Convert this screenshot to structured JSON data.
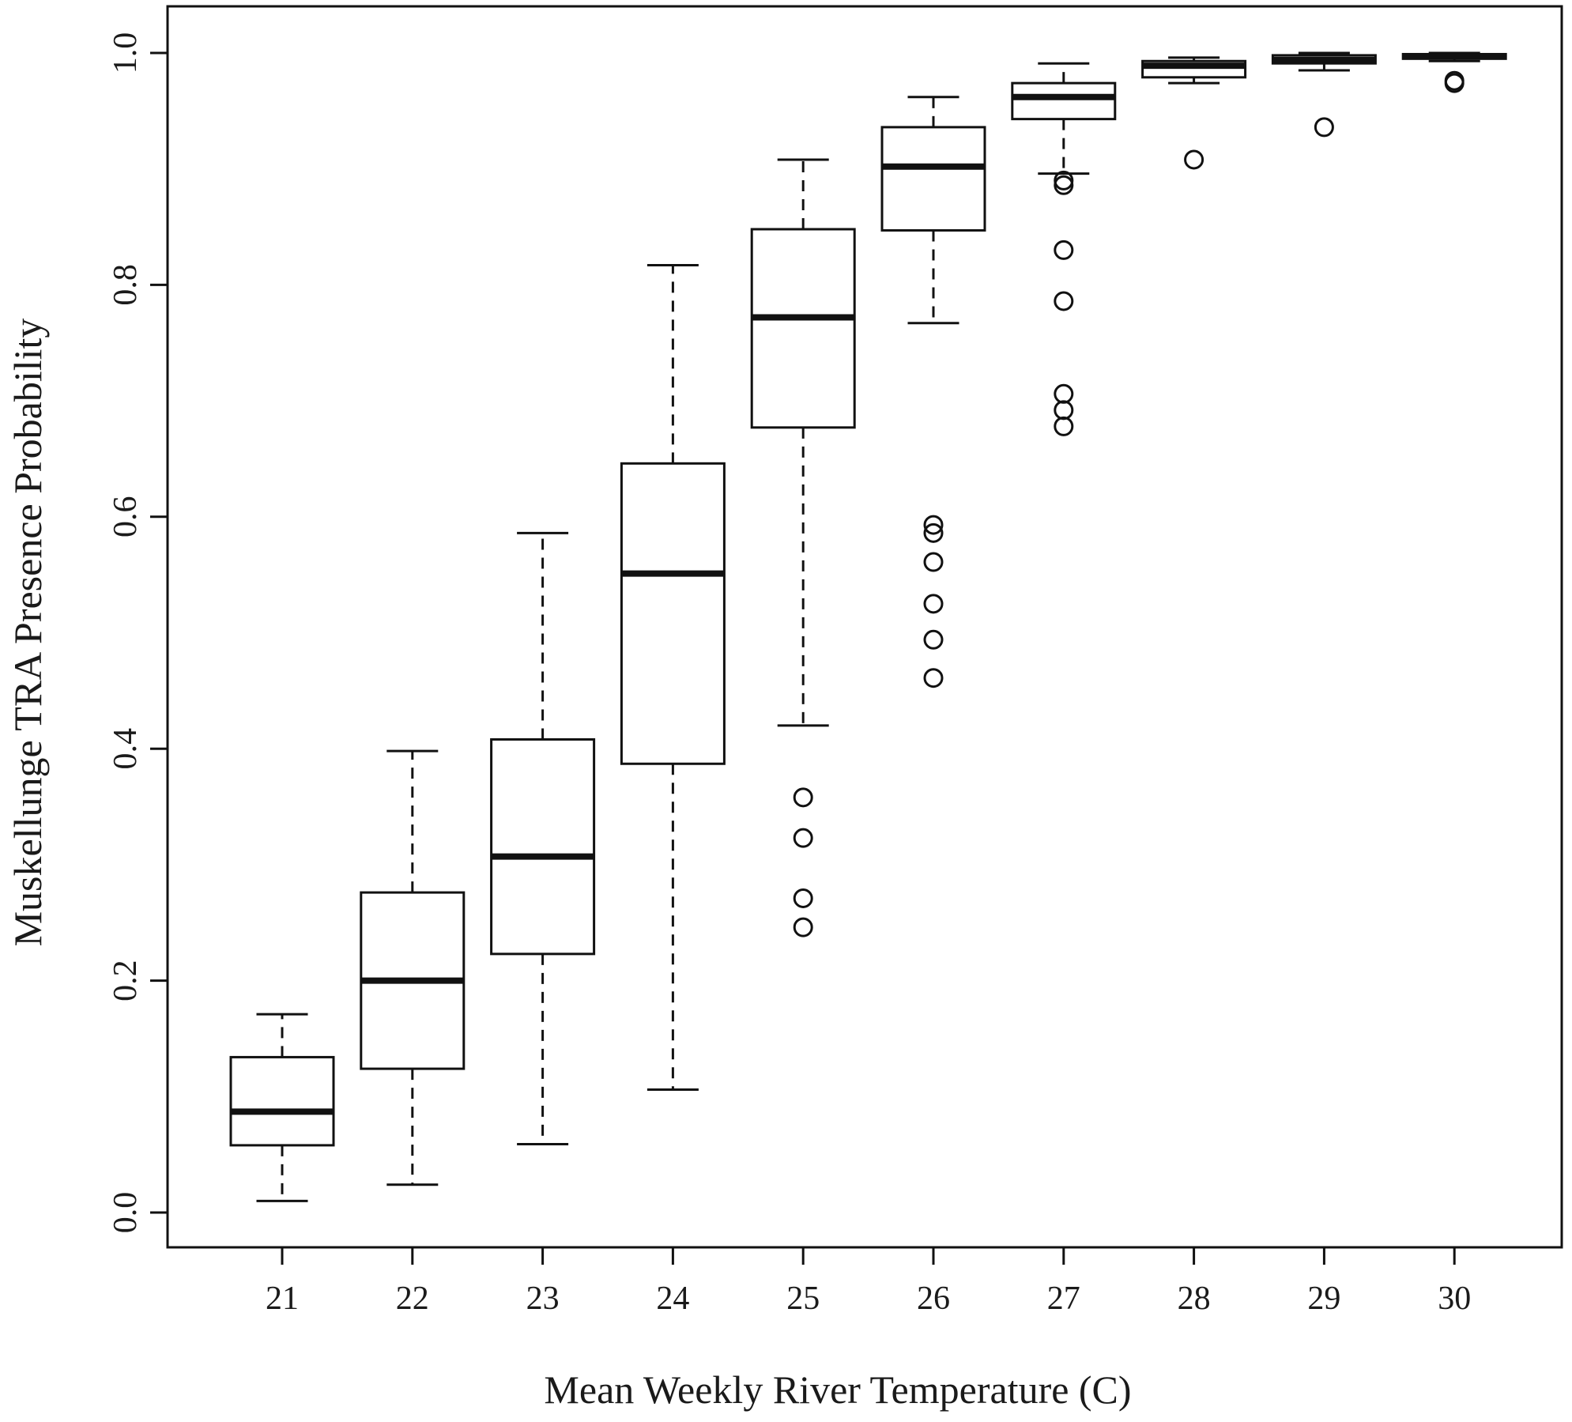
{
  "chart_data": {
    "type": "boxplot",
    "xlabel": "Mean Weekly River Temperature (C)",
    "ylabel": "Muskellunge TRA Presence Probability",
    "ylim": [
      0.0,
      1.0
    ],
    "yticks": [
      "0.0",
      "0.2",
      "0.4",
      "0.6",
      "0.8",
      "1.0"
    ],
    "categories": [
      "21",
      "22",
      "23",
      "24",
      "25",
      "26",
      "27",
      "28",
      "29",
      "30"
    ],
    "boxes": [
      {
        "category": "21",
        "whisker_low": 0.01,
        "q1": 0.058,
        "median": 0.087,
        "q3": 0.134,
        "whisker_high": 0.171,
        "outliers": []
      },
      {
        "category": "22",
        "whisker_low": 0.024,
        "q1": 0.124,
        "median": 0.2,
        "q3": 0.276,
        "whisker_high": 0.398,
        "outliers": []
      },
      {
        "category": "23",
        "whisker_low": 0.059,
        "q1": 0.223,
        "median": 0.307,
        "q3": 0.408,
        "whisker_high": 0.586,
        "outliers": []
      },
      {
        "category": "24",
        "whisker_low": 0.106,
        "q1": 0.387,
        "median": 0.551,
        "q3": 0.646,
        "whisker_high": 0.817,
        "outliers": []
      },
      {
        "category": "25",
        "whisker_low": 0.42,
        "q1": 0.677,
        "median": 0.772,
        "q3": 0.848,
        "whisker_high": 0.908,
        "outliers": [
          0.358,
          0.323,
          0.271,
          0.246
        ]
      },
      {
        "category": "26",
        "whisker_low": 0.767,
        "q1": 0.847,
        "median": 0.902,
        "q3": 0.936,
        "whisker_high": 0.962,
        "outliers": [
          0.593,
          0.586,
          0.561,
          0.525,
          0.494,
          0.461
        ]
      },
      {
        "category": "27",
        "whisker_low": 0.896,
        "q1": 0.943,
        "median": 0.962,
        "q3": 0.974,
        "whisker_high": 0.991,
        "outliers": [
          0.89,
          0.886,
          0.83,
          0.786,
          0.706,
          0.692,
          0.678
        ]
      },
      {
        "category": "28",
        "whisker_low": 0.974,
        "q1": 0.979,
        "median": 0.989,
        "q3": 0.993,
        "whisker_high": 0.996,
        "outliers": [
          0.908
        ]
      },
      {
        "category": "29",
        "whisker_low": 0.985,
        "q1": 0.991,
        "median": 0.994,
        "q3": 0.998,
        "whisker_high": 1.0,
        "outliers": [
          0.936
        ]
      },
      {
        "category": "30",
        "whisker_low": 0.993,
        "q1": 0.995,
        "median": 0.997,
        "q3": 0.999,
        "whisker_high": 1.0,
        "outliers": [
          0.976,
          0.974
        ]
      }
    ],
    "grid": false,
    "legend": "none"
  }
}
